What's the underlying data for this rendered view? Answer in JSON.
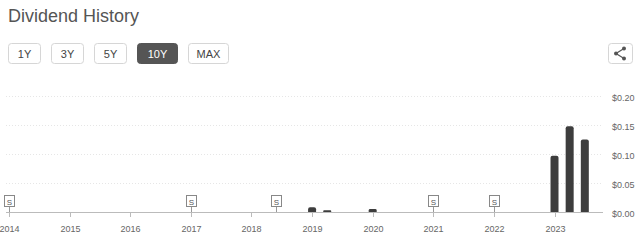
{
  "chart_data": {
    "type": "bar",
    "title": "Dividend History",
    "range_buttons": [
      "1Y",
      "3Y",
      "5Y",
      "10Y",
      "MAX"
    ],
    "active_range": "10Y",
    "x": [
      2019.0,
      2019.25,
      2020.0,
      2023.0,
      2023.25,
      2023.5
    ],
    "values": [
      0.008,
      0.003,
      0.005,
      0.097,
      0.148,
      0.125
    ],
    "color": "#3d3d3d",
    "xlim": [
      2013.95,
      2023.8
    ],
    "xticks": [
      2014,
      2015,
      2016,
      2017,
      2018,
      2019,
      2020,
      2021,
      2022,
      2023
    ],
    "ylim": [
      0,
      0.2
    ],
    "yticks": [
      {
        "value": 0,
        "label": "$0.00"
      },
      {
        "value": 0.05,
        "label": "$0.05"
      },
      {
        "value": 0.1,
        "label": "$0.10"
      },
      {
        "value": 0.15,
        "label": "$0.15"
      },
      {
        "value": 0.2,
        "label": "$0.20"
      }
    ],
    "annotations": [
      {
        "x": 2014,
        "text": "S"
      },
      {
        "x": 2017,
        "text": "S"
      },
      {
        "x": 2018.4,
        "text": "S"
      },
      {
        "x": 2021,
        "text": "S"
      },
      {
        "x": 2022,
        "text": "S"
      }
    ],
    "grid": true
  }
}
